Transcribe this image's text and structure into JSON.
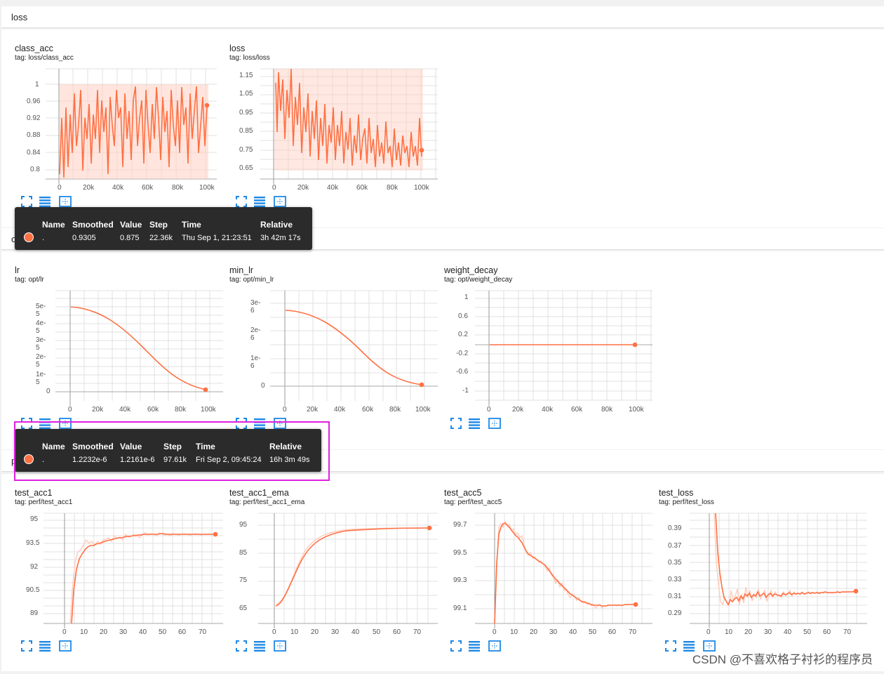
{
  "sections": {
    "loss": "loss",
    "opt": "opt",
    "perf": "perf"
  },
  "cards": {
    "class_acc": {
      "title": "class_acc",
      "tag": "tag: loss/class_acc",
      "yticks": [
        "1",
        "0.96",
        "0.92",
        "0.88",
        "0.84",
        "0.8"
      ],
      "xticks": [
        "0",
        "20k",
        "40k",
        "60k",
        "80k",
        "100k"
      ]
    },
    "loss": {
      "title": "loss",
      "tag": "tag: loss/loss",
      "yticks": [
        "1.15",
        "1.05",
        "0.95",
        "0.85",
        "0.75",
        "0.65"
      ],
      "xticks": [
        "0",
        "20k",
        "40k",
        "60k",
        "80k",
        "100k"
      ]
    },
    "lr": {
      "title": "lr",
      "tag": "tag: opt/lr",
      "yticks": [
        "5e-5",
        "4e-5",
        "3e-5",
        "2e-5",
        "1e-5",
        "0"
      ],
      "xticks": [
        "0",
        "20k",
        "40k",
        "60k",
        "80k",
        "100k"
      ]
    },
    "min_lr": {
      "title": "min_lr",
      "tag": "tag: opt/min_lr",
      "yticks": [
        "3e-6",
        "2e-6",
        "1e-6",
        "0"
      ],
      "xticks": [
        "0",
        "20k",
        "40k",
        "60k",
        "80k",
        "100k"
      ]
    },
    "weight_decay": {
      "title": "weight_decay",
      "tag": "tag: opt/weight_decay",
      "yticks": [
        "1",
        "0.6",
        "0.2",
        "-0.2",
        "-0.6",
        "-1"
      ],
      "xticks": [
        "0",
        "20k",
        "40k",
        "60k",
        "80k",
        "100k"
      ]
    },
    "test_acc1": {
      "title": "test_acc1",
      "tag": "tag: perf/test_acc1",
      "yticks": [
        "95",
        "93.5",
        "92",
        "90.5",
        "89"
      ],
      "xticks": [
        "0",
        "10",
        "20",
        "30",
        "40",
        "50",
        "60",
        "70"
      ]
    },
    "test_acc1_ema": {
      "title": "test_acc1_ema",
      "tag": "tag: perf/test_acc1_ema",
      "yticks": [
        "95",
        "85",
        "75",
        "65"
      ],
      "xticks": [
        "0",
        "10",
        "20",
        "30",
        "40",
        "50",
        "60",
        "70"
      ]
    },
    "test_acc5": {
      "title": "test_acc5",
      "tag": "tag: perf/test_acc5",
      "yticks": [
        "99.7",
        "99.5",
        "99.3",
        "99.1"
      ],
      "xticks": [
        "0",
        "10",
        "20",
        "30",
        "40",
        "50",
        "60",
        "70"
      ]
    },
    "test_loss": {
      "title": "test_loss",
      "tag": "tag: perf/test_loss",
      "yticks": [
        "0.39",
        "0.37",
        "0.35",
        "0.33",
        "0.31",
        "0.29"
      ],
      "xticks": [
        "0",
        "10",
        "20",
        "30",
        "40",
        "50",
        "60",
        "70"
      ]
    }
  },
  "tooltip1": {
    "headers": {
      "name": "Name",
      "smoothed": "Smoothed",
      "value": "Value",
      "step": "Step",
      "time": "Time",
      "relative": "Relative"
    },
    "row": {
      "name": ".",
      "smoothed": "0.9305",
      "value": "0.875",
      "step": "22.36k",
      "time": "Thu Sep 1, 21:23:51",
      "relative": "3h 42m 17s"
    }
  },
  "tooltip2": {
    "headers": {
      "name": "Name",
      "smoothed": "Smoothed",
      "value": "Value",
      "step": "Step",
      "time": "Time",
      "relative": "Relative"
    },
    "row": {
      "name": ".",
      "smoothed": "1.2232e-6",
      "value": "1.2161e-6",
      "step": "97.61k",
      "time": "Fri Sep 2, 09:45:24",
      "relative": "16h 3m 49s"
    }
  },
  "tool_icons": [
    "fullscreen-icon",
    "toggle-log-icon",
    "fit-domain-icon"
  ],
  "watermark": "CSDN @不喜欢格子衬衫的程序员",
  "colors": {
    "series": "#ff7043",
    "series_light": "#ffccbc",
    "tool": "#1e88e5",
    "highlight": "#e020e0"
  }
}
